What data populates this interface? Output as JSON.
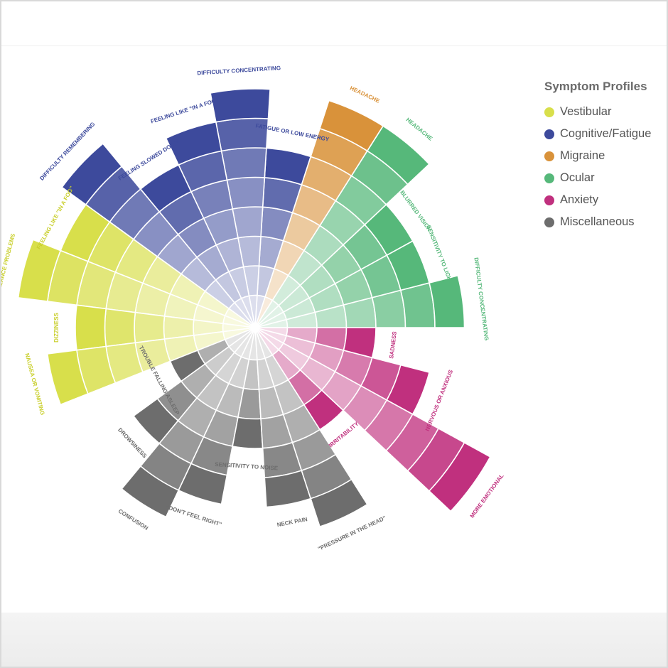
{
  "legend": {
    "title": "Symptom Profiles",
    "items": [
      {
        "label": "Vestibular",
        "color": "#d8df4b"
      },
      {
        "label": "Cognitive/Fatigue",
        "color": "#3d4a9c"
      },
      {
        "label": "Migraine",
        "color": "#d9923a"
      },
      {
        "label": "Ocular",
        "color": "#56b87a"
      },
      {
        "label": "Anxiety",
        "color": "#c0307e"
      },
      {
        "label": "Miscellaneous",
        "color": "#6d6d6d"
      }
    ]
  },
  "chart_data": {
    "type": "radial-bar",
    "max_rings": 9,
    "series": [
      {
        "name": "Vestibular",
        "color": "#d8df4b"
      },
      {
        "name": "Cognitive/Fatigue",
        "color": "#3d4a9c"
      },
      {
        "name": "Migraine",
        "color": "#d9923a"
      },
      {
        "name": "Ocular",
        "color": "#56b87a"
      },
      {
        "name": "Anxiety",
        "color": "#c0307e"
      },
      {
        "name": "Miscellaneous",
        "color": "#6d6d6d"
      }
    ],
    "symptoms": [
      {
        "label": "DIFFICULTY CONCENTRATING",
        "profile": 3,
        "value": 7
      },
      {
        "label": "SENSITIVITY TO LIGHT",
        "profile": 3,
        "value": 6
      },
      {
        "label": "BLURRED VISION",
        "profile": 3,
        "value": 6
      },
      {
        "label": "HEADACHE",
        "profile": 3,
        "value": 8
      },
      {
        "label": "HEADACHE",
        "profile": 2,
        "value": 8
      },
      {
        "label": "FATIGUE OR LOW ENERGY",
        "profile": 1,
        "value": 6
      },
      {
        "label": "DIFFICULTY CONCENTRATING",
        "profile": 1,
        "value": 8
      },
      {
        "label": "FEELING LIKE \"IN A FOG\"",
        "profile": 1,
        "value": 7
      },
      {
        "label": "FEELING SLOWED DOWN",
        "profile": 1,
        "value": 6
      },
      {
        "label": "DIFFICULTY REMEMBERING",
        "profile": 1,
        "value": 8
      },
      {
        "label": "FEELING LIKE \"IN A FOG\"",
        "profile": 0,
        "value": 7
      },
      {
        "label": "BALANCE PROBLEMS",
        "profile": 0,
        "value": 8
      },
      {
        "label": "DIZZINESS",
        "profile": 0,
        "value": 6
      },
      {
        "label": "NAUSEA OR VOMITING",
        "profile": 0,
        "value": 7
      },
      {
        "label": "TROUBLE FALLING ASLEEP",
        "profile": 5,
        "value": 3
      },
      {
        "label": "DROWSINESS",
        "profile": 5,
        "value": 5
      },
      {
        "label": "CONFUSION",
        "profile": 5,
        "value": 7
      },
      {
        "label": "\"DON'T FEEL RIGHT\"",
        "profile": 5,
        "value": 6
      },
      {
        "label": "SENSITIVITY TO NOISE",
        "profile": 5,
        "value": 4
      },
      {
        "label": "NECK PAIN",
        "profile": 5,
        "value": 6
      },
      {
        "label": "\"PRESSURE IN THE HEAD\"",
        "profile": 5,
        "value": 7
      },
      {
        "label": "IRRITABILITY",
        "profile": 4,
        "value": 4
      },
      {
        "label": "MORE EMOTIONAL",
        "profile": 4,
        "value": 9
      },
      {
        "label": "NERVOUS OR ANXIOUS",
        "profile": 4,
        "value": 6
      },
      {
        "label": "SADNESS",
        "profile": 4,
        "value": 4
      }
    ]
  }
}
